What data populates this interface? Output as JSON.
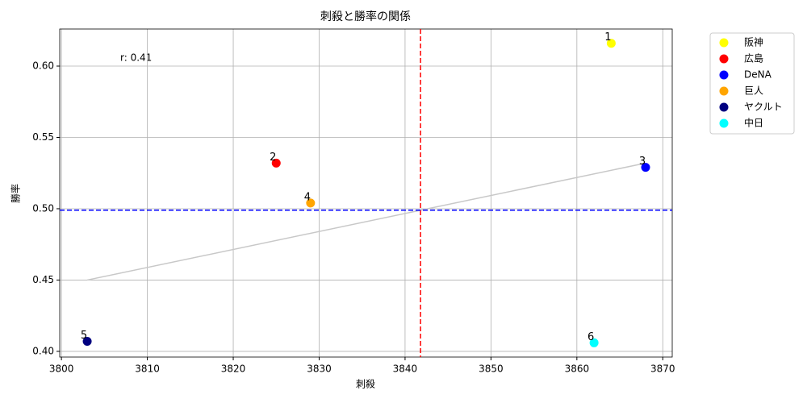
{
  "chart_data": {
    "type": "scatter",
    "title": "刺殺と勝率の関係",
    "x_label": "刺殺",
    "y_label": "勝率",
    "series": [
      {
        "name": "阪神",
        "color": "#ffff00",
        "x": [
          3864
        ],
        "values": [
          0.616
        ],
        "point_label": "1"
      },
      {
        "name": "広島",
        "color": "#ff0000",
        "x": [
          3825
        ],
        "values": [
          0.532
        ],
        "point_label": "2"
      },
      {
        "name": "DeNA",
        "color": "#0000ff",
        "x": [
          3868
        ],
        "values": [
          0.529
        ],
        "point_label": "3"
      },
      {
        "name": "巨人",
        "color": "#ffa500",
        "x": [
          3829
        ],
        "values": [
          0.504
        ],
        "point_label": "4"
      },
      {
        "name": "ヤクルト",
        "color": "#000080",
        "x": [
          3803
        ],
        "values": [
          0.407
        ],
        "point_label": "5"
      },
      {
        "name": "中日",
        "color": "#00ffff",
        "x": [
          3862
        ],
        "values": [
          0.406
        ],
        "point_label": "6"
      }
    ],
    "mean_x": 3841.8,
    "mean_x_color": "#ff0000",
    "mean_y": 0.499,
    "mean_y_color": "#0000ff",
    "trend_line": {
      "x": [
        3803,
        3868
      ],
      "values": [
        0.45,
        0.532
      ],
      "color": "#c8c8c8"
    },
    "annotation": "r: 0.41",
    "xlim": [
      3799.8,
      3871.1
    ],
    "xticks": [
      3800,
      3810,
      3820,
      3830,
      3840,
      3850,
      3860,
      3870
    ],
    "ylim": [
      0.396,
      0.626
    ],
    "yticks": [
      {
        "value": 0.4,
        "label": "0.40"
      },
      0.45,
      {
        "value": 0.5,
        "label": "0.50"
      },
      0.55,
      {
        "value": 0.6,
        "label": "0.60"
      }
    ],
    "grid": true,
    "legend": "outside-right"
  }
}
